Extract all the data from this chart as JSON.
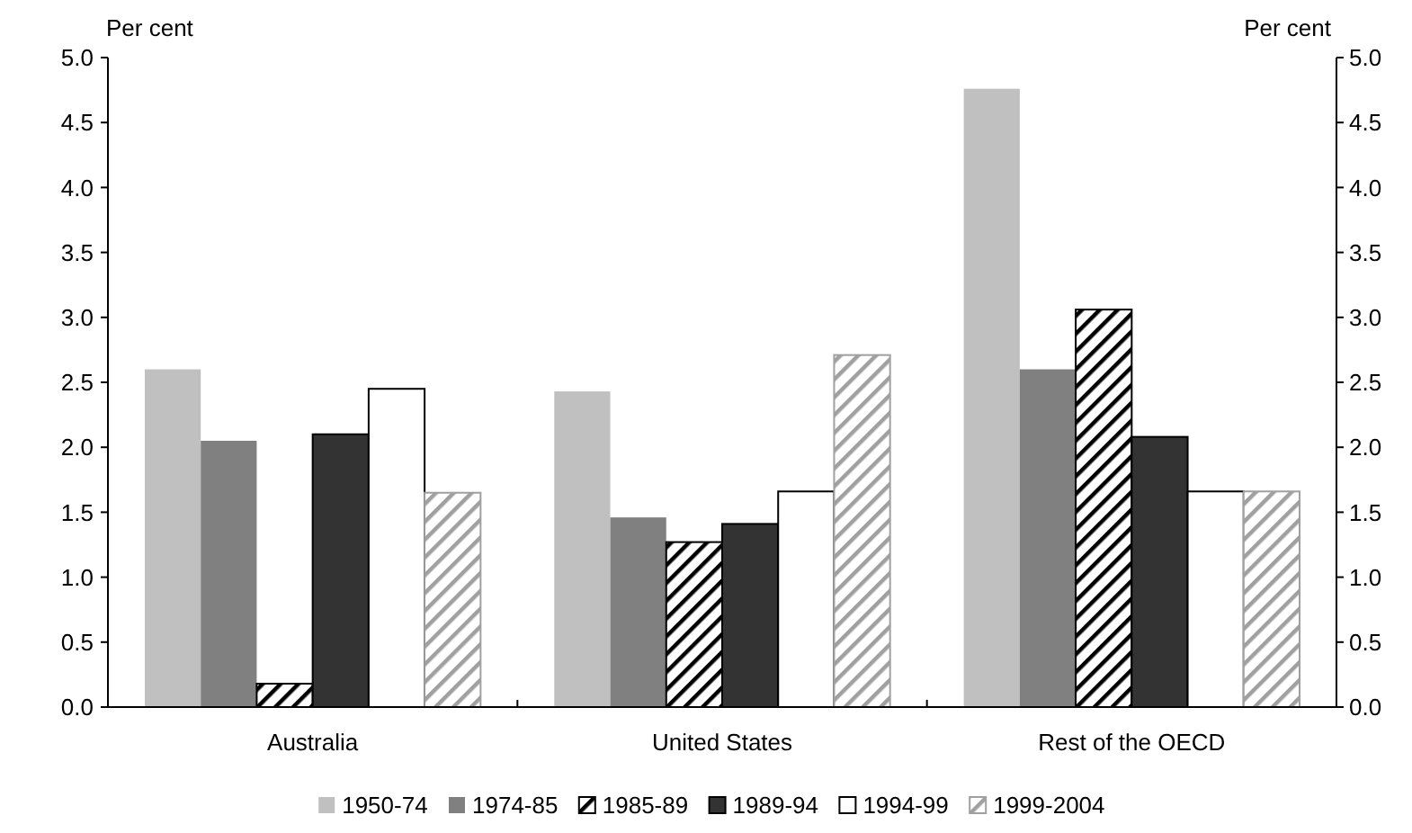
{
  "chart_data": {
    "type": "bar",
    "ylabel": "Per cent",
    "y2label": "Per cent",
    "categories": [
      "Australia",
      "United States",
      "Rest of the OECD"
    ],
    "ylim": [
      0,
      5
    ],
    "yticks": [
      {
        "value": 0,
        "label": "0.0"
      },
      {
        "value": 0.5,
        "label": "0.5"
      },
      {
        "value": 1,
        "label": "1.0"
      },
      {
        "value": 1.5,
        "label": "1.5"
      },
      {
        "value": 2,
        "label": "2.0"
      },
      {
        "value": 2.5,
        "label": "2.5"
      },
      {
        "value": 3,
        "label": "3.0"
      },
      {
        "value": 3.5,
        "label": "3.5"
      },
      {
        "value": 4,
        "label": "4.0"
      },
      {
        "value": 4.5,
        "label": "4.5"
      },
      {
        "value": 5,
        "label": "5.0"
      }
    ],
    "y2lim": [
      0,
      5
    ],
    "y2ticks": [
      {
        "value": 0,
        "label": "0.0"
      },
      {
        "value": 0.5,
        "label": "0.5"
      },
      {
        "value": 1,
        "label": "1.0"
      },
      {
        "value": 1.5,
        "label": "1.5"
      },
      {
        "value": 2,
        "label": "2.0"
      },
      {
        "value": 2.5,
        "label": "2.5"
      },
      {
        "value": 3,
        "label": "3.0"
      },
      {
        "value": 3.5,
        "label": "3.5"
      },
      {
        "value": 4,
        "label": "4.0"
      },
      {
        "value": 4.5,
        "label": "4.5"
      },
      {
        "value": 5,
        "label": "5.0"
      }
    ],
    "grid": false,
    "legend": "bottom",
    "series": [
      {
        "name": "1950-74",
        "color": "#c0c0c0",
        "values": [
          2.6,
          2.43,
          4.76
        ]
      },
      {
        "name": "1974-85",
        "color": "#808080",
        "values": [
          2.05,
          1.46,
          2.6
        ]
      },
      {
        "name": "1985-89",
        "color": "#000000",
        "values": [
          0.18,
          1.27,
          3.06
        ]
      },
      {
        "name": "1989-94",
        "color": "#333333",
        "values": [
          2.1,
          1.41,
          2.08
        ]
      },
      {
        "name": "1994-99",
        "color": "#ffffff",
        "values": [
          2.45,
          1.66,
          1.66
        ]
      },
      {
        "name": "1999-2004",
        "color": "#a0a0a0",
        "values": [
          1.65,
          2.71,
          1.66
        ]
      }
    ]
  }
}
